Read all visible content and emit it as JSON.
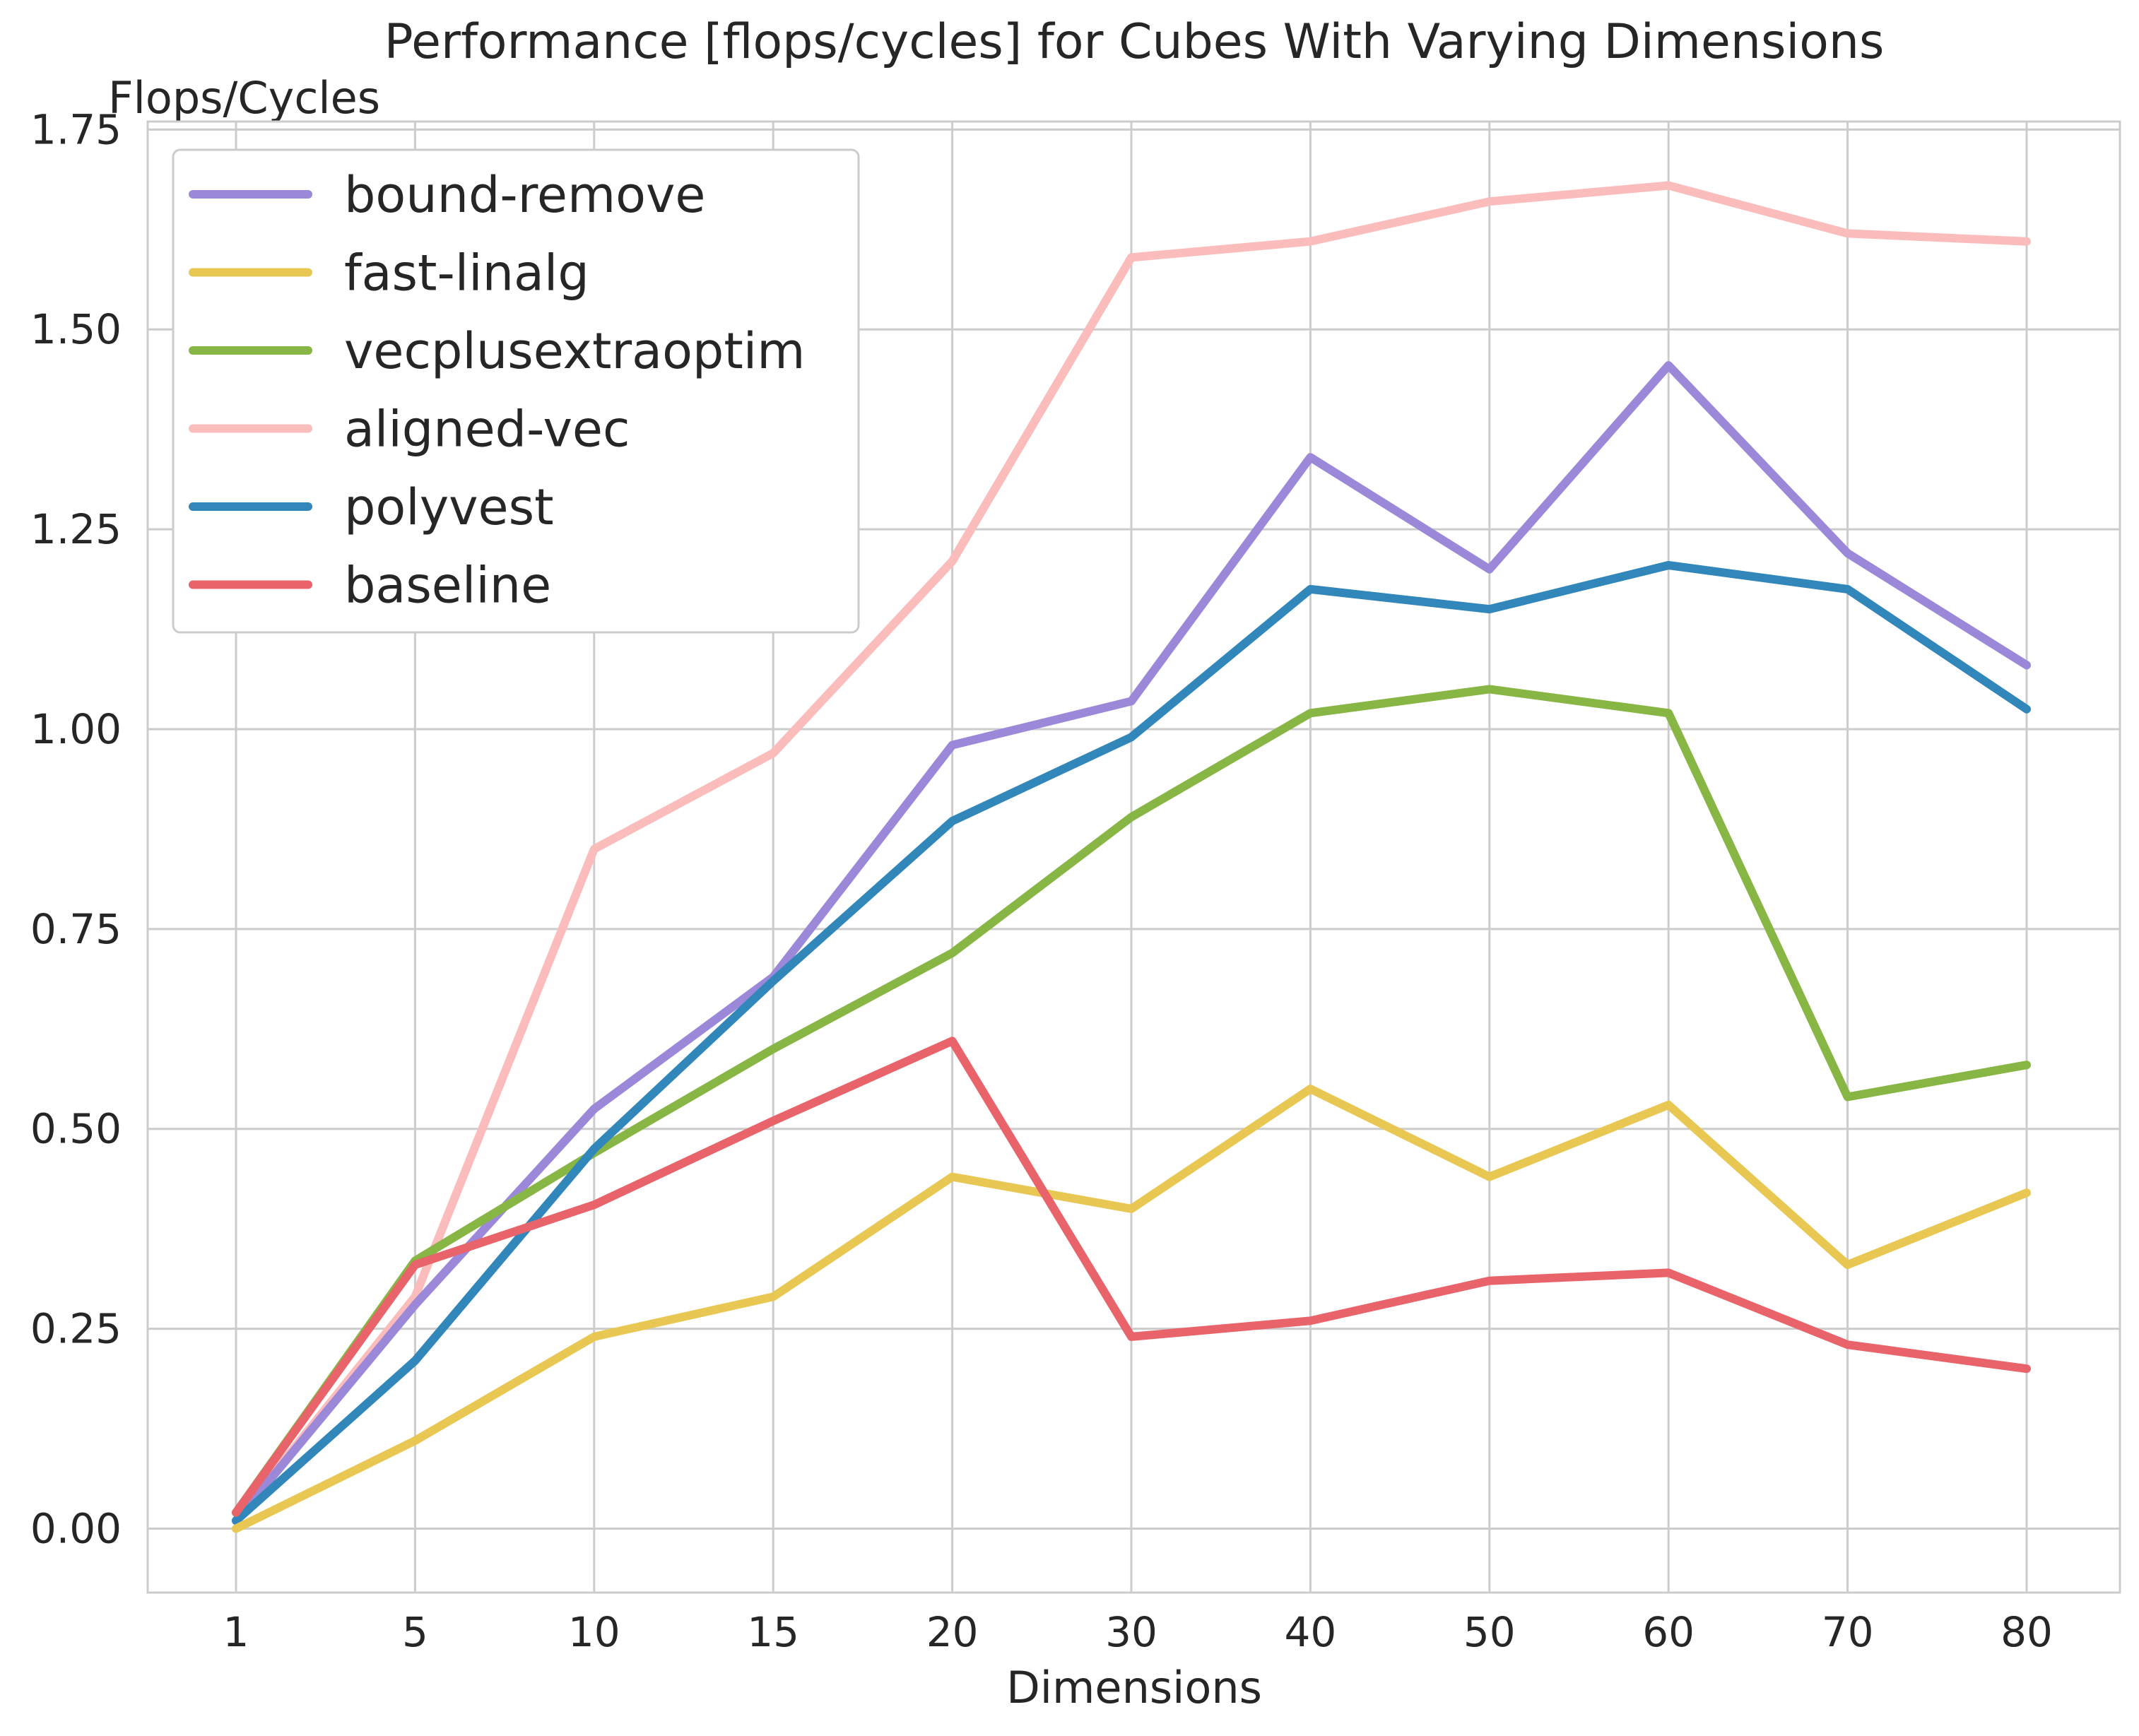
{
  "chart_data": {
    "type": "line",
    "title": "Performance [flops/cycles] for Cubes With Varying Dimensions",
    "ylabel": "Flops/Cycles",
    "xlabel": "Dimensions",
    "categories": [
      "1",
      "5",
      "10",
      "15",
      "20",
      "30",
      "40",
      "50",
      "60",
      "70",
      "80"
    ],
    "ylim": [
      -0.08,
      1.76
    ],
    "yticks": [
      "0.00",
      "0.25",
      "0.50",
      "0.75",
      "1.00",
      "1.25",
      "1.50",
      "1.75"
    ],
    "grid": true,
    "legend_position": "top-left",
    "series": [
      {
        "name": "bound-remove",
        "color": "#9b88d9",
        "values": [
          0.01,
          0.28,
          0.525,
          0.69,
          0.98,
          1.035,
          1.34,
          1.2,
          1.455,
          1.22,
          1.08
        ]
      },
      {
        "name": "fast-linalg",
        "color": "#e8c853",
        "values": [
          0.0,
          0.11,
          0.24,
          0.29,
          0.44,
          0.4,
          0.55,
          0.44,
          0.53,
          0.33,
          0.42
        ]
      },
      {
        "name": "vecplusextraoptim",
        "color": "#88b644",
        "values": [
          0.02,
          0.335,
          0.47,
          0.6,
          0.72,
          0.89,
          1.02,
          1.05,
          1.02,
          0.54,
          0.58
        ]
      },
      {
        "name": "aligned-vec",
        "color": "#fbbcbc",
        "values": [
          0.01,
          0.29,
          0.85,
          0.97,
          1.21,
          1.59,
          1.61,
          1.66,
          1.68,
          1.62,
          1.61
        ]
      },
      {
        "name": "polyvest",
        "color": "#3186ba",
        "values": [
          0.01,
          0.21,
          0.475,
          0.685,
          0.885,
          0.99,
          1.175,
          1.15,
          1.205,
          1.175,
          1.025
        ]
      },
      {
        "name": "baseline",
        "color": "#e8646a",
        "values": [
          0.02,
          0.33,
          0.405,
          0.51,
          0.61,
          0.24,
          0.26,
          0.31,
          0.32,
          0.23,
          0.2
        ]
      }
    ]
  }
}
